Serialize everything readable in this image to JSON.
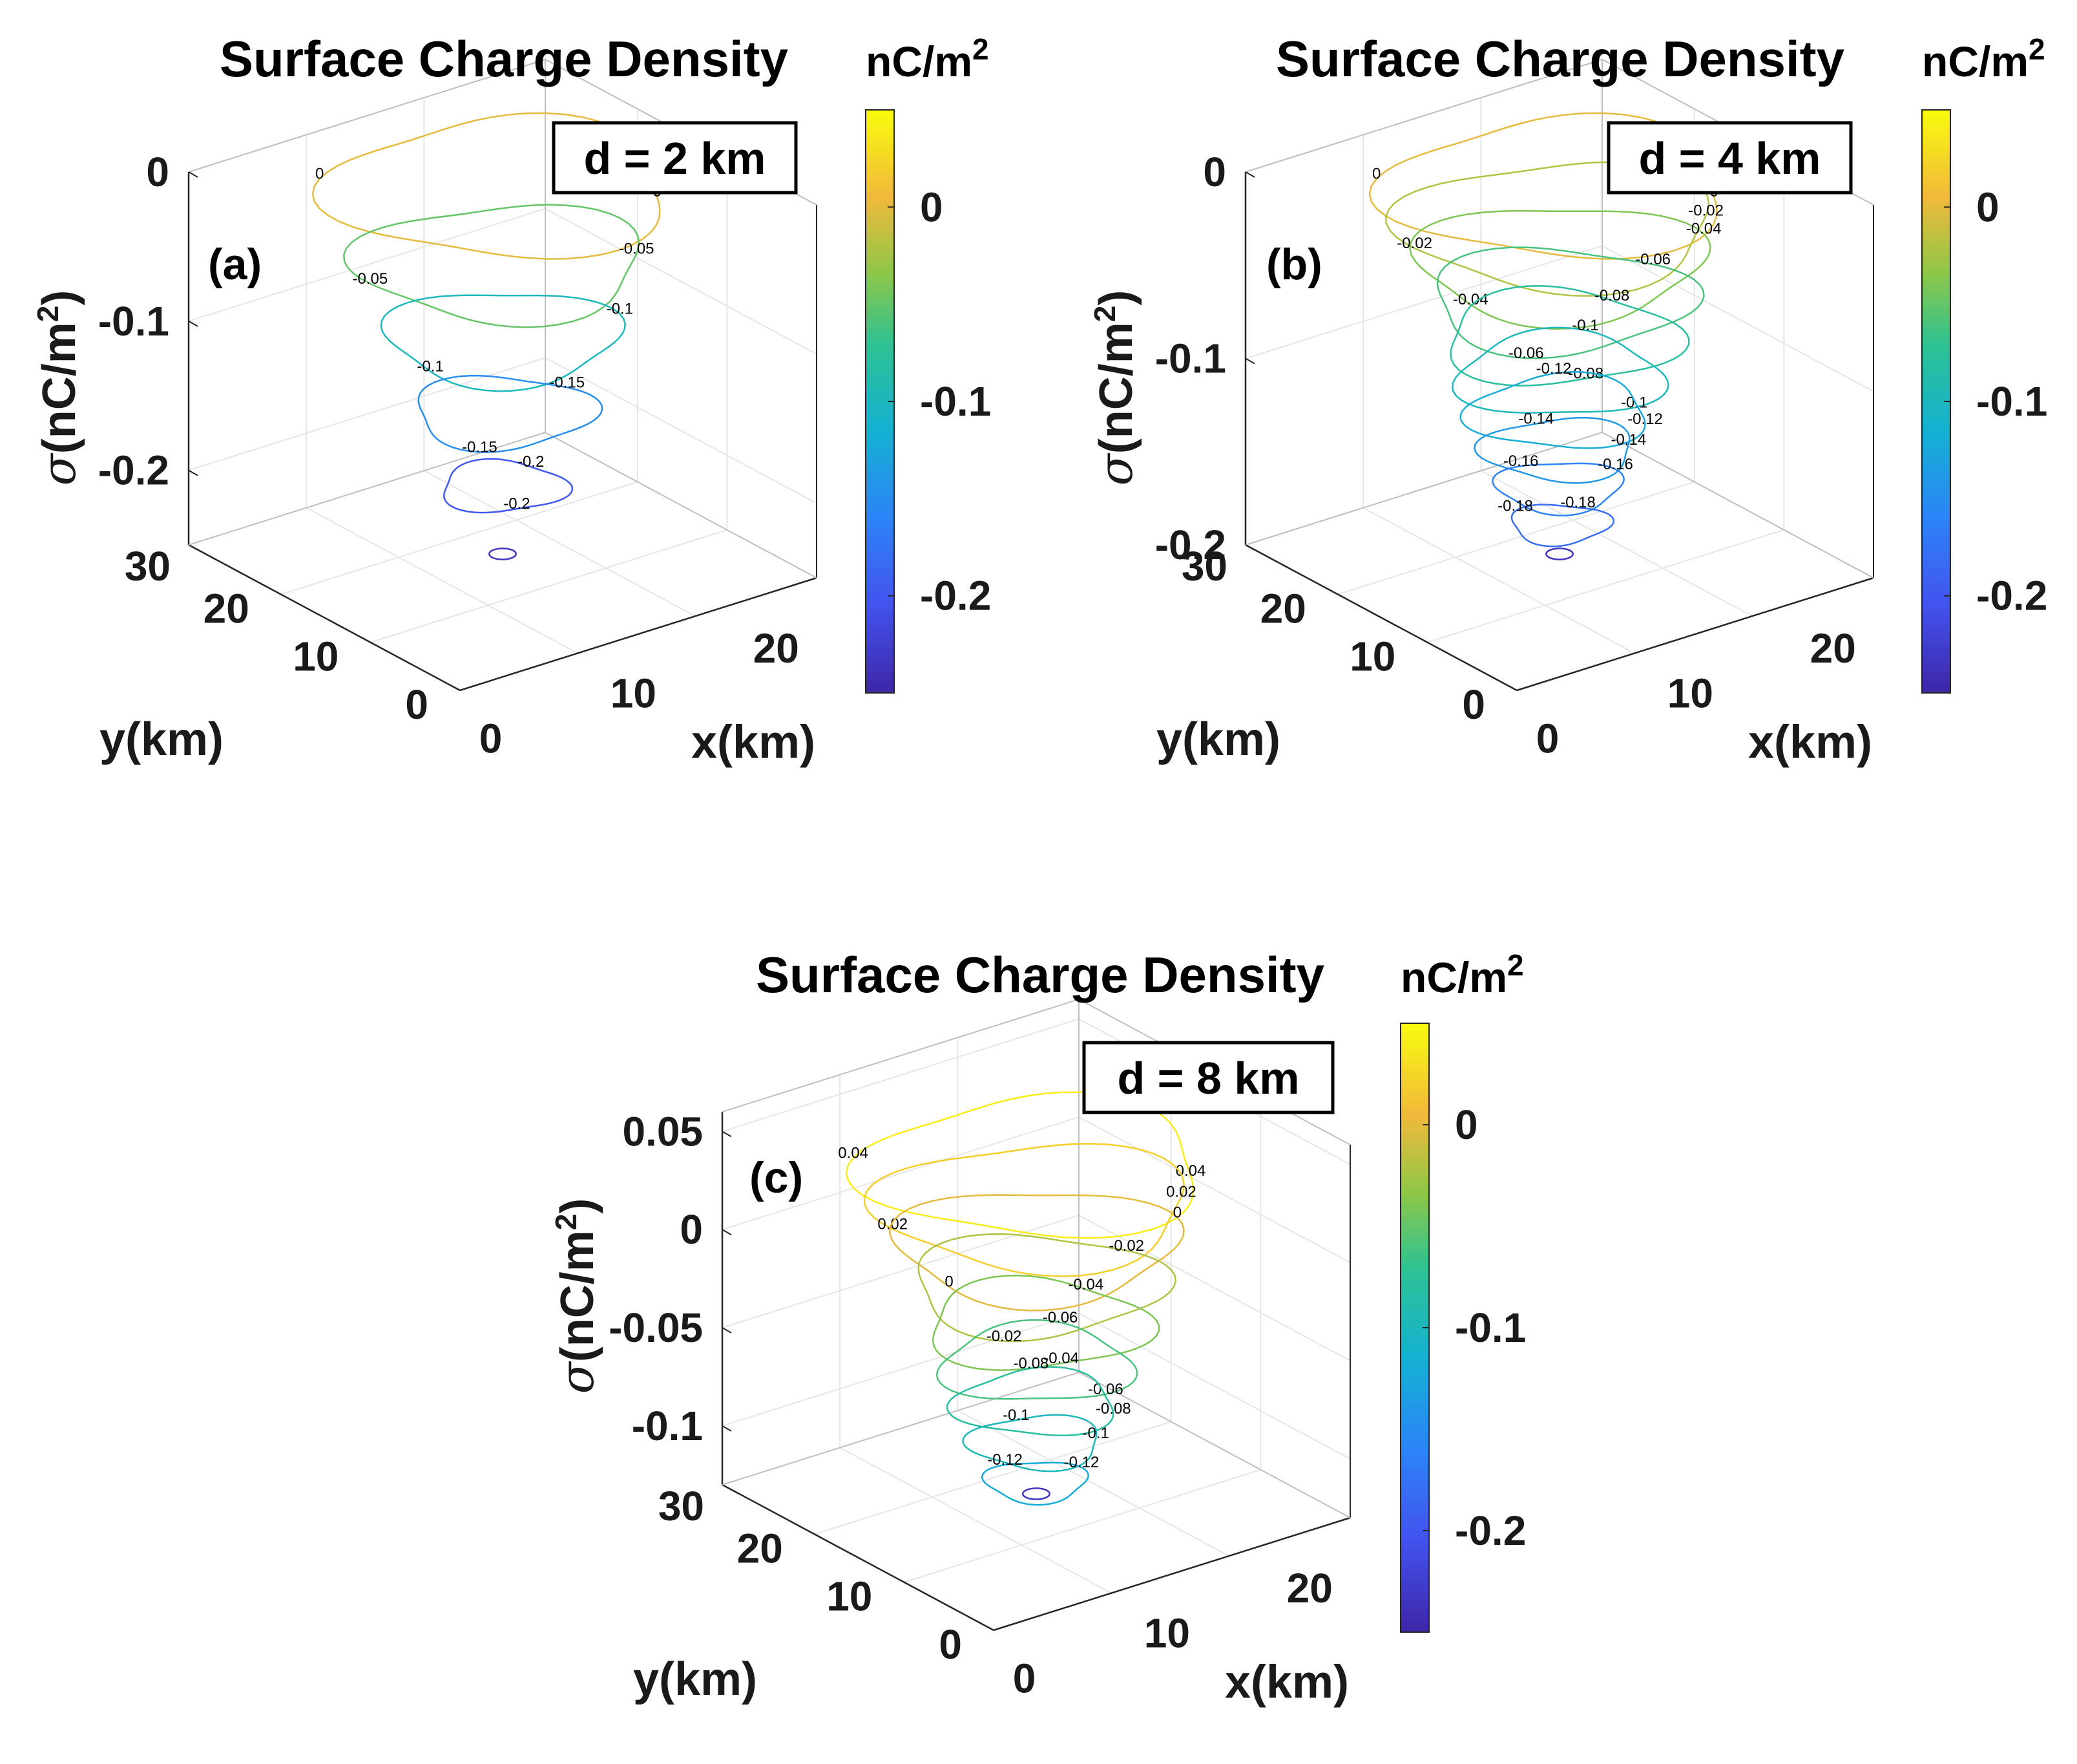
{
  "figure": {
    "title": "Surface Charge Density"
  },
  "chart_data": [
    {
      "type": "contour3d",
      "panel": "(a)",
      "title": "Surface Charge Density",
      "annotation": "d = 2 km",
      "xlabel": "x(km)",
      "ylabel": "y(km)",
      "zlabel": "σ(nC/m²)",
      "xlabel_prefix": "x",
      "ylabel_prefix": "y",
      "zlabel_symbol": "σ",
      "unit_label": "(nC/m²)",
      "xticks": [
        "0",
        "10",
        "20"
      ],
      "yticks": [
        "0",
        "10",
        "20",
        "30"
      ],
      "zticks": [
        "0",
        "-0.1",
        "-0.2"
      ],
      "zlim": [
        -0.25,
        0
      ],
      "contours": [
        {
          "level": 0,
          "label": "0"
        },
        {
          "level": -0.05,
          "label": "-0.05"
        },
        {
          "level": -0.1,
          "label": "-0.1"
        },
        {
          "level": -0.15,
          "label": "-0.15"
        },
        {
          "level": -0.2,
          "label": "-0.2"
        }
      ],
      "colorbar": {
        "label": "nC/m²",
        "label_base": "nC/m",
        "label_exp": "2",
        "ticks": [
          "0",
          "-0.1",
          "-0.2"
        ],
        "range": [
          -0.25,
          0.05
        ],
        "colormap": "parula"
      }
    },
    {
      "type": "contour3d",
      "panel": "(b)",
      "title": "Surface Charge Density",
      "annotation": "d = 4 km",
      "xlabel": "x(km)",
      "ylabel": "y(km)",
      "zlabel": "σ(nC/m²)",
      "xlabel_prefix": "x",
      "ylabel_prefix": "y",
      "zlabel_symbol": "σ",
      "unit_label": "(nC/m²)",
      "xticks": [
        "0",
        "10",
        "20"
      ],
      "yticks": [
        "0",
        "10",
        "20",
        "30"
      ],
      "zticks": [
        "0",
        "-0.1",
        "-0.2"
      ],
      "zlim": [
        -0.2,
        0
      ],
      "contours": [
        {
          "level": 0,
          "label": "0"
        },
        {
          "level": -0.02,
          "label": "-0.02"
        },
        {
          "level": -0.04,
          "label": "-0.04"
        },
        {
          "level": -0.06,
          "label": "-0.06"
        },
        {
          "level": -0.08,
          "label": "-0.08"
        },
        {
          "level": -0.1,
          "label": "-0.1"
        },
        {
          "level": -0.12,
          "label": "-0.12"
        },
        {
          "level": -0.14,
          "label": "-0.14"
        },
        {
          "level": -0.16,
          "label": "-0.16"
        },
        {
          "level": -0.18,
          "label": "-0.18"
        }
      ],
      "colorbar": {
        "label": "nC/m²",
        "label_base": "nC/m",
        "label_exp": "2",
        "ticks": [
          "0",
          "-0.1",
          "-0.2"
        ],
        "range": [
          -0.25,
          0.05
        ],
        "colormap": "parula"
      }
    },
    {
      "type": "contour3d",
      "panel": "(c)",
      "title": "Surface Charge Density",
      "annotation": "d = 8 km",
      "xlabel": "x(km)",
      "ylabel": "y(km)",
      "zlabel": "σ(nC/m²)",
      "xlabel_prefix": "x",
      "ylabel_prefix": "y",
      "zlabel_symbol": "σ",
      "unit_label": "(nC/m²)",
      "xticks": [
        "0",
        "10",
        "20"
      ],
      "yticks": [
        "0",
        "10",
        "20",
        "30"
      ],
      "zticks": [
        "0.05",
        "0",
        "-0.05",
        "-0.1"
      ],
      "zlim": [
        -0.13,
        0.06
      ],
      "contours": [
        {
          "level": 0.04,
          "label": "0.04"
        },
        {
          "level": 0.02,
          "label": "0.02"
        },
        {
          "level": 0,
          "label": "0"
        },
        {
          "level": -0.02,
          "label": "-0.02"
        },
        {
          "level": -0.04,
          "label": "-0.04"
        },
        {
          "level": -0.06,
          "label": "-0.06"
        },
        {
          "level": -0.08,
          "label": "-0.08"
        },
        {
          "level": -0.1,
          "label": "-0.1"
        },
        {
          "level": -0.12,
          "label": "-0.12"
        }
      ],
      "colorbar": {
        "label": "nC/m²",
        "label_base": "nC/m",
        "label_exp": "2",
        "ticks": [
          "0",
          "-0.1",
          "-0.2"
        ],
        "range": [
          -0.25,
          0.05
        ],
        "colormap": "parula"
      }
    }
  ]
}
